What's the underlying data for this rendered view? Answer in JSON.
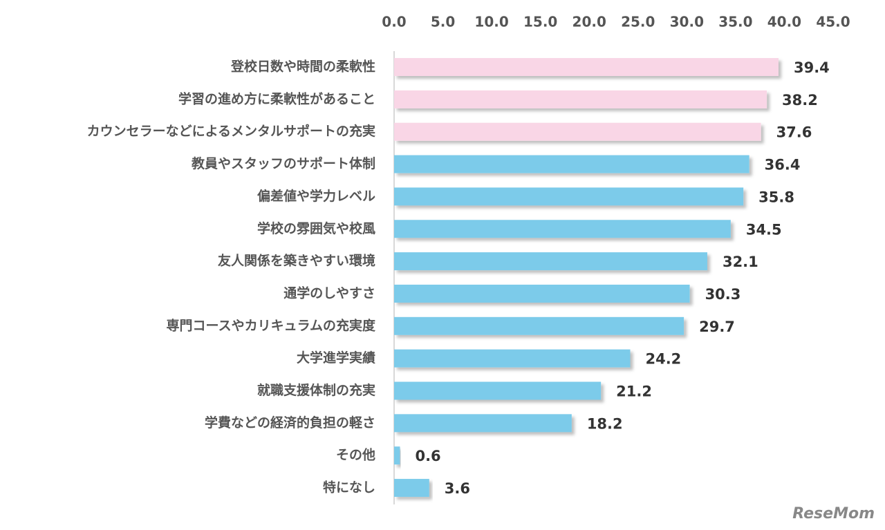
{
  "chart_data": {
    "type": "barh",
    "categories": [
      "登校日数や時間の柔軟性",
      "学習の進め方に柔軟性があること",
      "カウンセラーなどによるメンタルサポートの充実",
      "教員やスタッフのサポート体制",
      "偏差値や学力レベル",
      "学校の雰囲気や校風",
      "友人関係を築きやすい環境",
      "通学のしやすさ",
      "専門コースやカリキュラムの充実度",
      "大学進学実績",
      "就職支援体制の充実",
      "学費などの経済的負担の軽さ",
      "その他",
      "特になし"
    ],
    "values": [
      39.4,
      38.2,
      37.6,
      36.4,
      35.8,
      34.5,
      32.1,
      30.3,
      29.7,
      24.2,
      21.2,
      18.2,
      0.6,
      3.6
    ],
    "colors": [
      "#f9d6e6",
      "#f9d6e6",
      "#f9d6e6",
      "#7ccbea",
      "#7ccbea",
      "#7ccbea",
      "#7ccbea",
      "#7ccbea",
      "#7ccbea",
      "#7ccbea",
      "#7ccbea",
      "#7ccbea",
      "#7ccbea",
      "#7ccbea"
    ],
    "xlim": [
      0,
      45
    ],
    "xticks": [
      {
        "value": 0,
        "label": "0.0"
      },
      {
        "value": 5,
        "label": "5.0"
      },
      {
        "value": 10,
        "label": "10.0"
      },
      {
        "value": 15,
        "label": "15.0"
      },
      {
        "value": 20,
        "label": "20.0"
      },
      {
        "value": 25,
        "label": "25.0"
      },
      {
        "value": 30,
        "label": "30.0"
      },
      {
        "value": 35,
        "label": "35.0"
      },
      {
        "value": 40,
        "label": "40.0"
      },
      {
        "value": 45,
        "label": "45.0"
      }
    ],
    "watermark": "ReseMom"
  }
}
